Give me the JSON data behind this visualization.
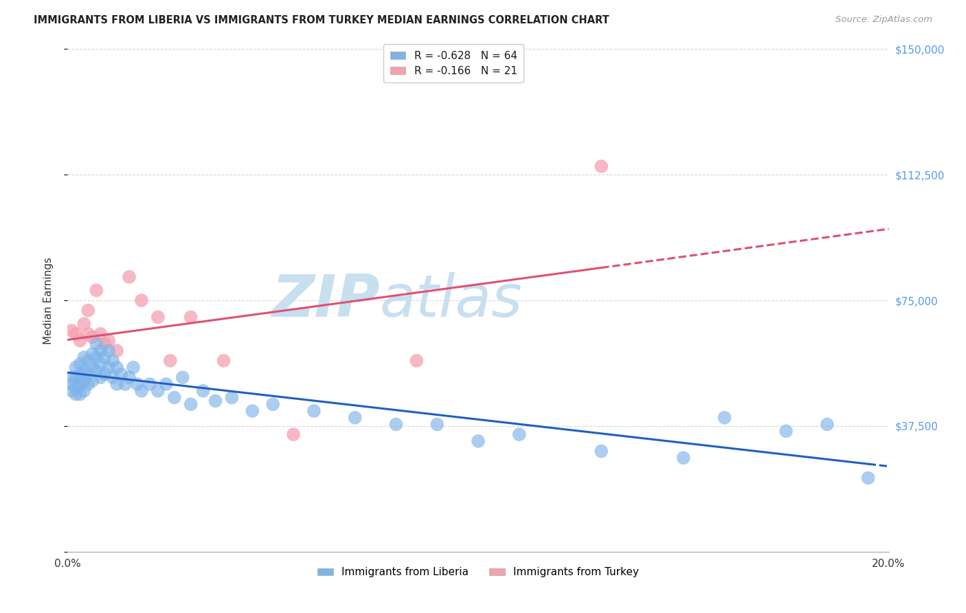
{
  "title": "IMMIGRANTS FROM LIBERIA VS IMMIGRANTS FROM TURKEY MEDIAN EARNINGS CORRELATION CHART",
  "source": "Source: ZipAtlas.com",
  "xlabel": "",
  "ylabel": "Median Earnings",
  "xlim": [
    0.0,
    0.2
  ],
  "ylim": [
    0,
    150000
  ],
  "yticks": [
    0,
    37500,
    75000,
    112500,
    150000
  ],
  "ytick_labels": [
    "",
    "$37,500",
    "$75,000",
    "$112,500",
    "$150,000"
  ],
  "xticks": [
    0.0,
    0.04,
    0.08,
    0.12,
    0.16,
    0.2
  ],
  "xtick_labels": [
    "0.0%",
    "",
    "",
    "",
    "",
    "20.0%"
  ],
  "r_liberia": -0.628,
  "n_liberia": 64,
  "r_turkey": -0.166,
  "n_turkey": 21,
  "color_liberia": "#7eb3e8",
  "color_turkey": "#f4a0b0",
  "line_color_liberia": "#2060c0",
  "line_color_turkey": "#e05070",
  "legend_label_liberia": "Immigrants from Liberia",
  "legend_label_turkey": "Immigrants from Turkey",
  "background_color": "#ffffff",
  "grid_color": "#d8d8d8",
  "watermark_zip": "ZIP",
  "watermark_atlas": "atlas",
  "watermark_color_zip": "#c8dff0",
  "watermark_color_atlas": "#c8dff0",
  "liberia_x": [
    0.001,
    0.001,
    0.001,
    0.002,
    0.002,
    0.002,
    0.002,
    0.003,
    0.003,
    0.003,
    0.003,
    0.004,
    0.004,
    0.004,
    0.004,
    0.005,
    0.005,
    0.005,
    0.006,
    0.006,
    0.006,
    0.007,
    0.007,
    0.007,
    0.008,
    0.008,
    0.008,
    0.009,
    0.009,
    0.01,
    0.01,
    0.011,
    0.011,
    0.012,
    0.012,
    0.013,
    0.014,
    0.015,
    0.016,
    0.017,
    0.018,
    0.02,
    0.022,
    0.024,
    0.026,
    0.028,
    0.03,
    0.033,
    0.036,
    0.04,
    0.045,
    0.05,
    0.06,
    0.07,
    0.08,
    0.09,
    0.1,
    0.11,
    0.13,
    0.15,
    0.16,
    0.175,
    0.185,
    0.195
  ],
  "liberia_y": [
    52000,
    50000,
    48000,
    55000,
    52000,
    49000,
    47000,
    56000,
    53000,
    50000,
    47000,
    58000,
    54000,
    51000,
    48000,
    57000,
    53000,
    50000,
    59000,
    55000,
    51000,
    62000,
    58000,
    54000,
    60000,
    56000,
    52000,
    58000,
    53000,
    60000,
    55000,
    57000,
    52000,
    55000,
    50000,
    53000,
    50000,
    52000,
    55000,
    50000,
    48000,
    50000,
    48000,
    50000,
    46000,
    52000,
    44000,
    48000,
    45000,
    46000,
    42000,
    44000,
    42000,
    40000,
    38000,
    38000,
    33000,
    35000,
    30000,
    28000,
    40000,
    36000,
    38000,
    22000
  ],
  "turkey_x": [
    0.001,
    0.002,
    0.003,
    0.004,
    0.005,
    0.005,
    0.006,
    0.007,
    0.008,
    0.009,
    0.01,
    0.012,
    0.015,
    0.018,
    0.022,
    0.025,
    0.03,
    0.038,
    0.055,
    0.085,
    0.13
  ],
  "turkey_y": [
    66000,
    65000,
    63000,
    68000,
    65000,
    72000,
    64000,
    78000,
    65000,
    62000,
    63000,
    60000,
    82000,
    75000,
    70000,
    57000,
    70000,
    57000,
    35000,
    57000,
    115000
  ]
}
